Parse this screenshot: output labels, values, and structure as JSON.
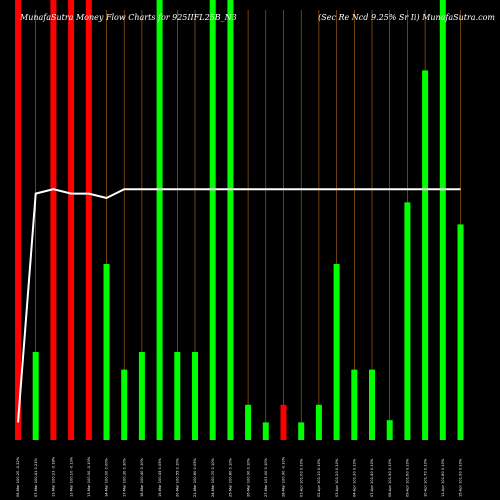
{
  "chart_data": {
    "type": "bar",
    "title_left": "MunafaSutra Money Flow Charts for 925IIFL25B_N3",
    "title_right": "(Sec Re   Ncd 9.25% Sr Ii) MunafaSutra.com",
    "ylim": [
      0,
      100
    ],
    "colors": {
      "background": "#000000",
      "up": "#00ff00",
      "down": "#ff0000",
      "line": "#ffffff",
      "grid": "#b86a1a"
    },
    "bars": [
      {
        "label": "06-Mar 100.20 -0.22%",
        "value": 100,
        "color": "down"
      },
      {
        "label": "07-Mar 100.41 0.21%",
        "value": 20,
        "color": "up"
      },
      {
        "label": "11-Mar 100.23 -0.18%",
        "value": 100,
        "color": "down"
      },
      {
        "label": "12-Mar 100.10 -0.13%",
        "value": 100,
        "color": "down"
      },
      {
        "label": "13-Mar 100.00 -0.10%",
        "value": 100,
        "color": "down"
      },
      {
        "label": "14-Mar 100.00 0.00%",
        "value": 40,
        "color": "up"
      },
      {
        "label": "17-Mar 100.30 0.30%",
        "value": 16,
        "color": "up"
      },
      {
        "label": "18-Mar 100.40 0.10%",
        "value": 20,
        "color": "up"
      },
      {
        "label": "19-Mar 100.45 0.05%",
        "value": 100,
        "color": "up"
      },
      {
        "label": "20-Mar 100.55 0.10%",
        "value": 20,
        "color": "up"
      },
      {
        "label": "21-Mar 100.60 0.05%",
        "value": 20,
        "color": "up"
      },
      {
        "label": "24-Mar 100.70 0.10%",
        "value": 100,
        "color": "up"
      },
      {
        "label": "25-Mar 100.80 0.10%",
        "value": 100,
        "color": "up"
      },
      {
        "label": "26-Mar 100.90 0.10%",
        "value": 8,
        "color": "up"
      },
      {
        "label": "27-Mar 101.00 0.10%",
        "value": 4,
        "color": "up"
      },
      {
        "label": "28-Mar 100.90 -0.10%",
        "value": 8,
        "color": "down"
      },
      {
        "label": "01-Apr 101.00 0.10%",
        "value": 4,
        "color": "up"
      },
      {
        "label": "02-Apr 101.10 0.10%",
        "value": 8,
        "color": "up"
      },
      {
        "label": "03-Apr 101.20 0.10%",
        "value": 40,
        "color": "up"
      },
      {
        "label": "04-Apr 101.30 0.10%",
        "value": 16,
        "color": "up"
      },
      {
        "label": "07-Apr 101.40 0.10%",
        "value": 16,
        "color": "up"
      },
      {
        "label": "08-Apr 101.50 0.10%",
        "value": 4.5,
        "color": "up"
      },
      {
        "label": "09-Apr 101.60 0.10%",
        "value": 54,
        "color": "up"
      },
      {
        "label": "10-Apr 101.70 0.10%",
        "value": 84,
        "color": "up"
      },
      {
        "label": "11-Apr 101.80 0.10%",
        "value": 100,
        "color": "up"
      },
      {
        "label": "15-Apr 101.90 0.10%",
        "value": 49,
        "color": "up"
      }
    ],
    "line": [
      4,
      56,
      57,
      56,
      56,
      55,
      57,
      57,
      57,
      57,
      57,
      57,
      57,
      57,
      57,
      57,
      57,
      57,
      57,
      57,
      57,
      57,
      57,
      57,
      57,
      57
    ]
  }
}
